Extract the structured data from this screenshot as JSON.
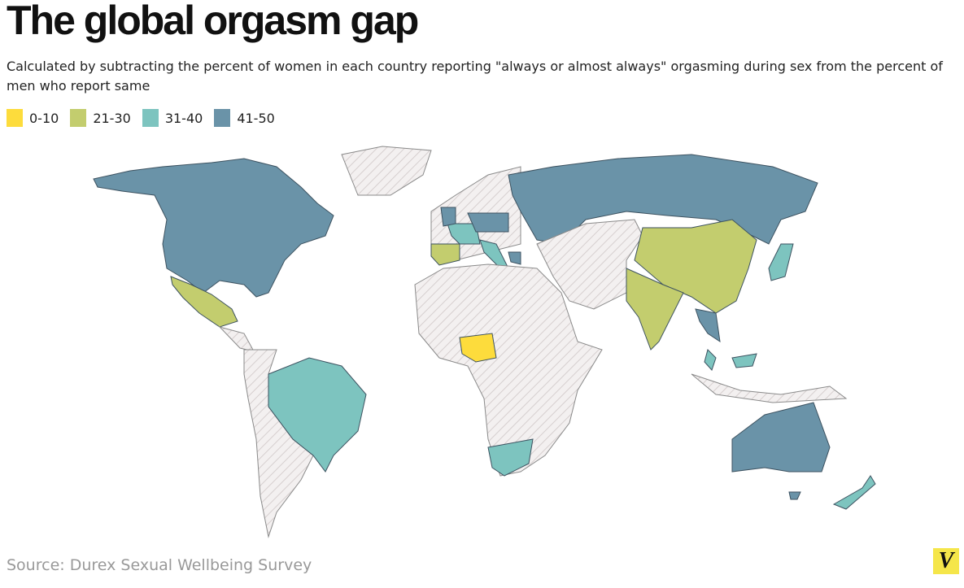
{
  "header": {
    "title": "The global orgasm gap",
    "subtitle": "Calculated by subtracting the percent of women in each country reporting \"always or almost always\" orgasming during sex from the percent of men who report same"
  },
  "legend": [
    {
      "label": "0-10",
      "color": "#fddc3c"
    },
    {
      "label": "21-30",
      "color": "#c3cd6e"
    },
    {
      "label": "31-40",
      "color": "#7dc4bf"
    },
    {
      "label": "41-50",
      "color": "#6a93a8"
    }
  ],
  "footer": {
    "source": "Source: Durex Sexual Wellbeing Survey",
    "logo": "V"
  }
}
